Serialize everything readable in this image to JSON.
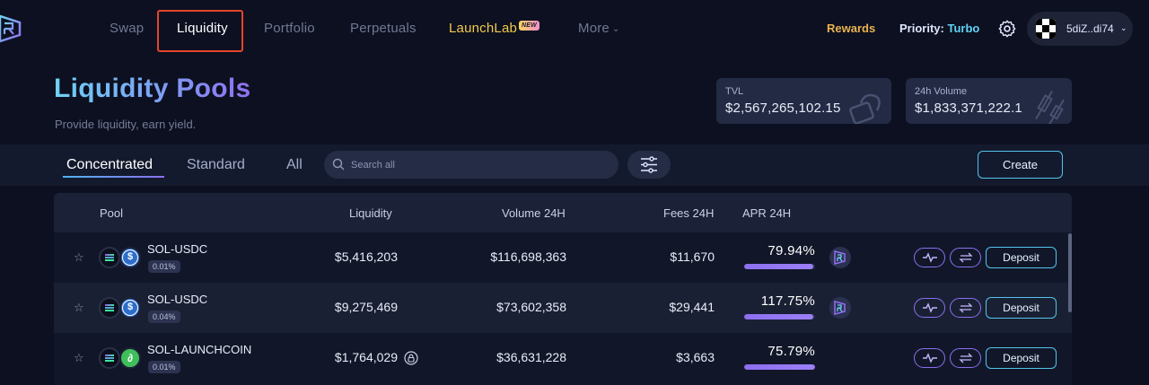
{
  "nav": {
    "items": [
      {
        "label": "Swap"
      },
      {
        "label": "Liquidity"
      },
      {
        "label": "Portfolio"
      },
      {
        "label": "Perpetuals"
      },
      {
        "label": "LaunchLab",
        "badge": "NEW"
      },
      {
        "label": "More"
      }
    ],
    "rewards": "Rewards",
    "priority_label": "Priority:",
    "priority_value": "Turbo",
    "wallet": "5diZ..di74"
  },
  "hero": {
    "title": "Liquidity Pools",
    "subtitle": "Provide liquidity, earn yield.",
    "stats": [
      {
        "label": "TVL",
        "value": "$2,567,265,102.15"
      },
      {
        "label": "24h Volume",
        "value": "$1,833,371,222.1"
      }
    ]
  },
  "toolbar": {
    "tabs": [
      "Concentrated",
      "Standard",
      "All"
    ],
    "search_placeholder": "Search all",
    "create_label": "Create"
  },
  "table": {
    "headers": {
      "pool": "Pool",
      "liquidity": "Liquidity",
      "volume": "Volume 24H",
      "fees": "Fees 24H",
      "apr": "APR 24H"
    },
    "deposit_label": "Deposit",
    "rows": [
      {
        "pair": "SOL-USDC",
        "fee_tier": "0.01%",
        "liquidity": "$5,416,203",
        "volume": "$116,698,363",
        "fees": "$11,670",
        "apr": "79.94%",
        "apr_fill": 0.98,
        "token2": "usdc",
        "reward": true,
        "locked": false
      },
      {
        "pair": "SOL-USDC",
        "fee_tier": "0.04%",
        "liquidity": "$9,275,469",
        "volume": "$73,602,358",
        "fees": "$29,441",
        "apr": "117.75%",
        "apr_fill": 0.98,
        "token2": "usdc",
        "reward": true,
        "locked": false
      },
      {
        "pair": "SOL-LAUNCHCOIN",
        "fee_tier": "0.01%",
        "liquidity": "$1,764,029",
        "volume": "$36,631,228",
        "fees": "$3,663",
        "apr": "75.79%",
        "apr_fill": 1.0,
        "token2": "launchcoin",
        "reward": false,
        "locked": true
      }
    ]
  },
  "colors": {
    "background": "#0d1020",
    "accent_purple": "#8b6ff0",
    "accent_cyan": "#53c4ea",
    "rewards_gold": "#e9b34f",
    "active_nav_outline": "#e2462b"
  }
}
